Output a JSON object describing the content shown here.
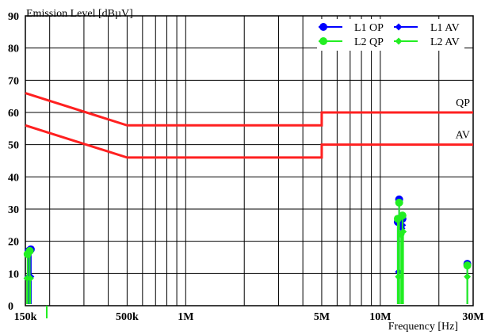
{
  "chart_data": {
    "type": "scatter",
    "title": "",
    "ylabel": "Emission Level [dBµV]",
    "xlabel": "Frequency [Hz]",
    "x_scale": "log",
    "xlim": [
      150000,
      30000000
    ],
    "ylim": [
      0,
      90
    ],
    "grid": true,
    "legend_position": "top-right",
    "y_ticks": [
      0,
      10,
      20,
      30,
      40,
      50,
      60,
      70,
      80,
      90
    ],
    "x_tick_labels": [
      {
        "value": 150000,
        "label": "150k"
      },
      {
        "value": 500000,
        "label": "500k"
      },
      {
        "value": 1000000,
        "label": "1M"
      },
      {
        "value": 5000000,
        "label": "5M"
      },
      {
        "value": 10000000,
        "label": "10M"
      },
      {
        "value": 30000000,
        "label": "30M"
      }
    ],
    "limit_lines": [
      {
        "label": "QP",
        "color": "#ff2020",
        "x": [
          150000,
          500000,
          5000000,
          5000000,
          30000000
        ],
        "y": [
          66,
          56,
          56,
          60,
          60
        ]
      },
      {
        "label": "AV",
        "color": "#ff2020",
        "x": [
          150000,
          500000,
          5000000,
          5000000,
          30000000
        ],
        "y": [
          56,
          46,
          46,
          50,
          50
        ]
      }
    ],
    "legend": [
      {
        "name": "L1 OP",
        "color": "#0000ff",
        "marker": "circle"
      },
      {
        "name": "L1 AV",
        "color": "#0000ff",
        "marker": "diamond"
      },
      {
        "name": "L2 QP",
        "color": "#22ee22",
        "marker": "circle"
      },
      {
        "name": "L2 AV",
        "color": "#22ee22",
        "marker": "diamond"
      }
    ],
    "series": [
      {
        "name": "L1 OP",
        "color": "#0000ff",
        "marker": "circle",
        "points": [
          [
            156000,
            17
          ],
          [
            160000,
            17.5
          ],
          [
            12500000,
            33
          ],
          [
            12300000,
            26
          ],
          [
            13000000,
            27
          ],
          [
            28000000,
            13
          ]
        ]
      },
      {
        "name": "L1 AV",
        "color": "#0000ff",
        "marker": "diamond",
        "points": [
          [
            155000,
            9
          ],
          [
            160000,
            9
          ],
          [
            12400000,
            10.5
          ],
          [
            12900000,
            24
          ],
          [
            13000000,
            25
          ]
        ]
      },
      {
        "name": "L2 QP",
        "color": "#22ee22",
        "marker": "circle",
        "points": [
          [
            154000,
            16
          ],
          [
            158000,
            17
          ],
          [
            12500000,
            32
          ],
          [
            12300000,
            27
          ],
          [
            13000000,
            28
          ],
          [
            28000000,
            12.5
          ]
        ]
      },
      {
        "name": "L2 AV",
        "color": "#22ee22",
        "marker": "diamond",
        "points": [
          [
            153000,
            8.5
          ],
          [
            159000,
            8.5
          ],
          [
            12400000,
            9
          ],
          [
            12800000,
            22
          ],
          [
            13100000,
            23
          ],
          [
            28000000,
            9
          ]
        ]
      }
    ]
  }
}
